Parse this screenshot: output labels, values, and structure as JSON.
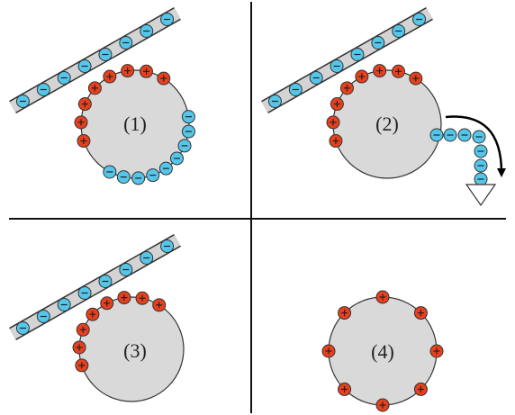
{
  "panels": [
    {
      "label": "(1)"
    },
    {
      "label": "(2)"
    },
    {
      "label": "(3)"
    },
    {
      "label": "(4)"
    }
  ]
}
